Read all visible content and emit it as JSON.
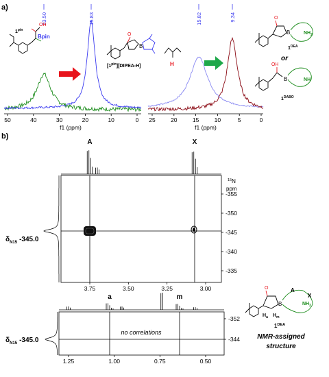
{
  "panel_a": {
    "label": "a)",
    "spectrum_left": {
      "xlabel": "f1 (ppm)",
      "ticks": [
        "50",
        "40",
        "30",
        "20",
        "10",
        "0"
      ],
      "peak_labels": [
        "33.50",
        "15.83"
      ],
      "colors": {
        "green": "#1c8c1c",
        "blue": "#3a3af0"
      }
    },
    "spectrum_right": {
      "xlabel": "f1 (ppm)",
      "ticks": [
        "25",
        "20",
        "15",
        "10",
        "5",
        "0"
      ],
      "peak_labels": [
        "15.82",
        "9.34"
      ],
      "colors": {
        "light_blue": "#8a8af2",
        "maroon": "#8b0a14"
      }
    },
    "compounds": {
      "c1_label": "1",
      "c1_sup": "pin",
      "bpin": "Bpin",
      "salt_label": "[1",
      "salt_sup": "pin",
      "salt_rest": "][DIPEA-H]",
      "dea_label": "1",
      "dea_sup": "DEA",
      "or_text": "or",
      "dabo_label": "1",
      "dabo_sup": "DABO",
      "oh": "OH",
      "o": "O",
      "b": "B",
      "nh2": "NH",
      "nh2_sub": "2",
      "n": "N",
      "h": "H"
    },
    "arrow_colors": {
      "red": "#e8141c",
      "green": "#1ea84a"
    }
  },
  "panel_b": {
    "label": "b)",
    "peak_A": "A",
    "peak_X": "X",
    "n15_label": "15",
    "n15_label_N": "N",
    "ppm": "ppm",
    "delta": "δ",
    "delta_sub": "N15",
    "delta_value": "-345.0",
    "upper_y_ticks": [
      "-355",
      "-350",
      "-345",
      "-340",
      "-335"
    ],
    "upper_x_ticks": [
      "3.75",
      "3.50",
      "3.25",
      "3.00"
    ],
    "lower_peak_a": "a",
    "lower_peak_m": "m",
    "lower_y_ticks": [
      "-352",
      "-344"
    ],
    "lower_x_ticks": [
      "1.25",
      "1.00",
      "0.75",
      "0.50"
    ],
    "no_corr": "no correlations",
    "structure": {
      "A": "A",
      "X": "X",
      "ha": "H",
      "ha_sub": "a",
      "hm": "H",
      "hm_sub": "m",
      "label": "1",
      "label_sup": "DEA",
      "caption_line1": "NMR-assigned",
      "caption_line2": "structure"
    }
  }
}
